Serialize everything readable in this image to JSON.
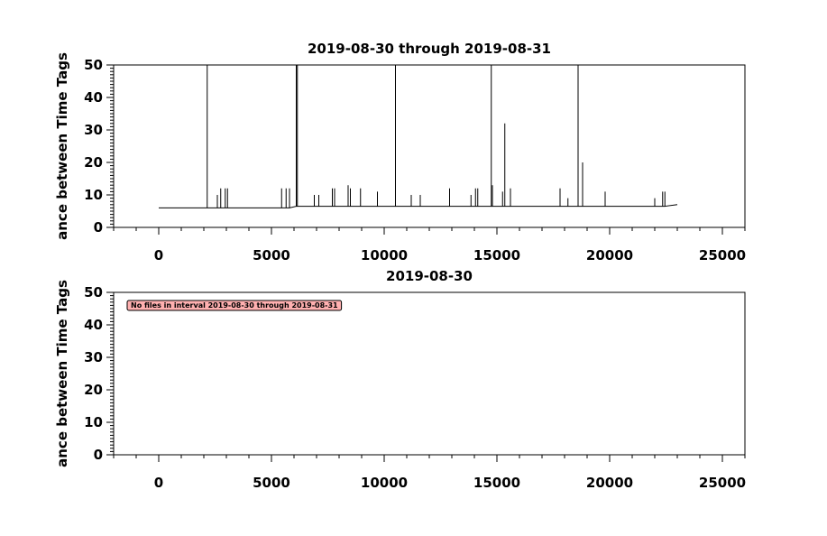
{
  "chart_data": [
    {
      "type": "line",
      "title": "2019-08-30 through 2019-08-31",
      "ylabel": "ance between Time Tags",
      "xlim": [
        -2000,
        26000
      ],
      "ylim": [
        0,
        50
      ],
      "xticks": [
        0,
        5000,
        10000,
        15000,
        20000,
        25000
      ],
      "yticks": [
        0,
        10,
        20,
        30,
        40,
        50
      ],
      "series": [
        {
          "color": "#000000",
          "x": [
            0,
            2150,
            2150,
            2150,
            2600,
            2600,
            2600,
            2750,
            2750,
            2750,
            2950,
            2950,
            2950,
            3050,
            3050,
            3050,
            5450,
            5450,
            5450,
            5650,
            5650,
            5650,
            5800,
            5800,
            5800,
            6100,
            6100,
            6100,
            6150,
            6150,
            6150,
            6900,
            6900,
            6900,
            7100,
            7100,
            7100,
            7700,
            7700,
            7700,
            7800,
            7800,
            7800,
            8400,
            8400,
            8400,
            8500,
            8500,
            8500,
            8950,
            8950,
            8950,
            9700,
            9700,
            9700,
            10500,
            10500,
            10500,
            11200,
            11200,
            11200,
            11600,
            11600,
            11600,
            12900,
            12900,
            12900,
            13850,
            13850,
            13850,
            14050,
            14050,
            14050,
            14150,
            14150,
            14150,
            14750,
            14750,
            14750,
            14800,
            14800,
            14800,
            15250,
            15250,
            15250,
            15350,
            15350,
            15350,
            15600,
            15600,
            15600,
            17800,
            17800,
            17800,
            18150,
            18150,
            18150,
            18600,
            18600,
            18600,
            18800,
            18800,
            18800,
            19800,
            19800,
            19800,
            22000,
            22000,
            22000,
            22350,
            22350,
            22350,
            22450,
            22450,
            22450,
            23000
          ],
          "values": [
            6,
            6,
            50,
            6,
            6,
            10,
            6,
            6,
            12,
            6,
            6,
            12,
            6,
            6,
            12,
            6,
            6,
            12,
            6,
            6,
            12,
            6,
            6,
            12,
            6,
            6.5,
            50,
            6.5,
            6.5,
            50,
            6.5,
            6.5,
            10,
            6.5,
            6.5,
            10,
            6.5,
            6.5,
            12,
            6.5,
            6.5,
            12,
            6.5,
            6.5,
            13,
            6.5,
            6.5,
            12,
            6.5,
            6.5,
            12,
            6.5,
            6.5,
            11,
            6.5,
            6.5,
            50,
            6.5,
            6.5,
            10,
            6.5,
            6.5,
            10,
            6.5,
            6.5,
            12,
            6.5,
            6.5,
            10,
            6.5,
            6.5,
            12,
            6.5,
            6.5,
            12,
            6.5,
            6.5,
            50,
            6.5,
            6.5,
            13,
            6.5,
            6.5,
            11,
            6.5,
            6.5,
            32,
            6.5,
            6.5,
            12,
            6.5,
            6.5,
            12,
            6.5,
            6.5,
            9,
            6.5,
            6.5,
            50,
            6.5,
            6.5,
            20,
            6.5,
            6.5,
            11,
            6.5,
            6.5,
            9,
            6.5,
            6.5,
            11,
            6.5,
            6.5,
            11,
            6.5,
            7
          ]
        }
      ]
    },
    {
      "type": "line",
      "title": "2019-08-30",
      "ylabel": "ance between Time Tags",
      "annotation": "No files in interval 2019-08-30 through 2019-08-31",
      "xlim": [
        -2000,
        26000
      ],
      "ylim": [
        0,
        50
      ],
      "xticks": [
        0,
        5000,
        10000,
        15000,
        20000,
        25000
      ],
      "yticks": [
        0,
        10,
        20,
        30,
        40,
        50
      ],
      "series": []
    }
  ]
}
